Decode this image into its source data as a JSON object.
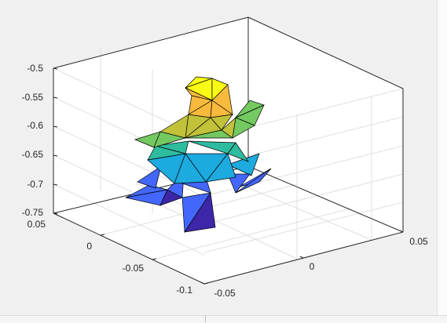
{
  "chart_data": {
    "type": "surface",
    "view": "3d",
    "title": "",
    "xlabel": "",
    "ylabel": "",
    "zlabel": "",
    "grid": true,
    "axes": {
      "z": {
        "ticks": [
          "-0.5",
          "-0.55",
          "-0.6",
          "-0.65",
          "-0.7",
          "-0.75"
        ],
        "lim": [
          -0.75,
          -0.5
        ]
      },
      "y": {
        "ticks": [
          "0.05",
          "0",
          "-0.05",
          "-0.1"
        ],
        "lim": [
          -0.1,
          0.05
        ]
      },
      "x": {
        "ticks": [
          "-0.05",
          "0",
          "0.05"
        ],
        "lim": [
          -0.075,
          0.075
        ]
      }
    },
    "colormap": [
      "#3e26a8",
      "#4367fd",
      "#1caadf",
      "#2ebc9f",
      "#74c961",
      "#c1c13a",
      "#f8ba3d",
      "#f9fb15"
    ],
    "edge_color": "#000000"
  }
}
